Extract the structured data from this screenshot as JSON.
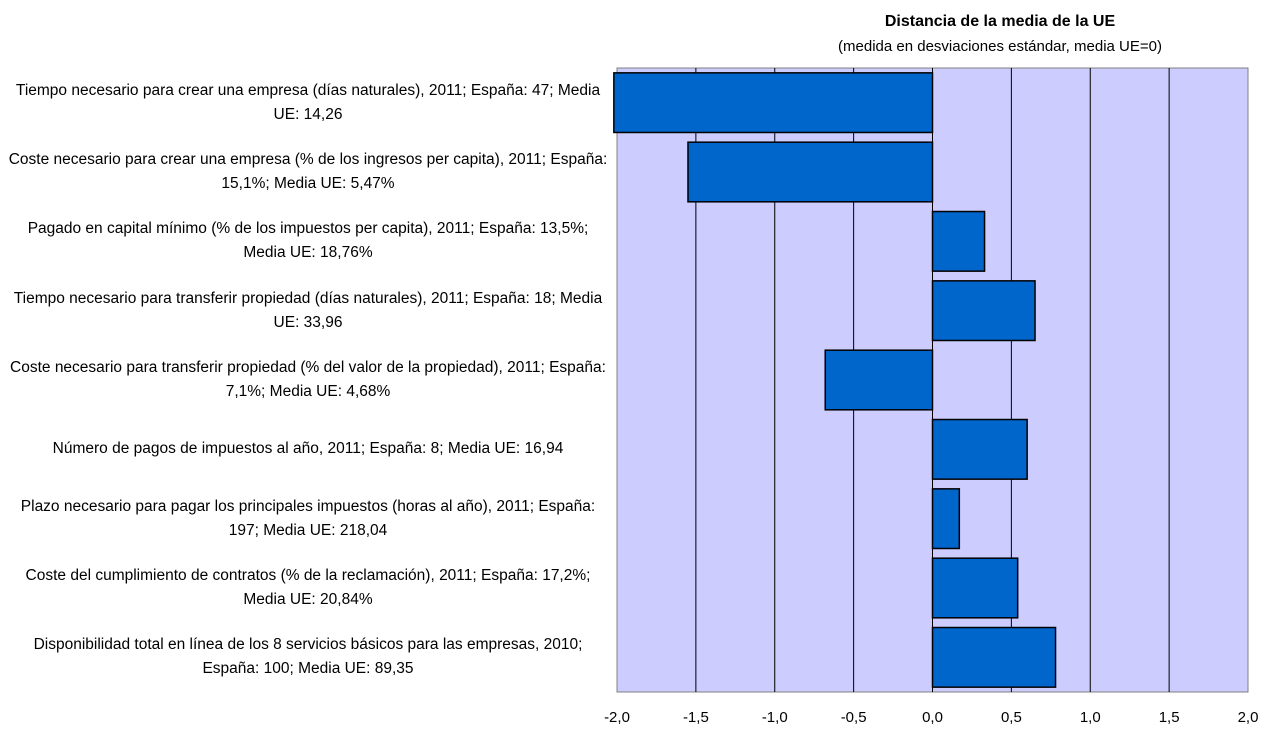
{
  "chart_data": {
    "type": "bar",
    "orientation": "horizontal",
    "title": "Distancia de la media de la UE",
    "subtitle": "(medida en desviaciones estándar, media UE=0)",
    "categories": [
      "Tiempo necesario para crear una empresa (días naturales), 2011; España: 47; Media UE: 14,26",
      "Coste necesario para crear una empresa (% de los ingresos per capita), 2011; España: 15,1%; Media UE: 5,47%",
      "Pagado en capital mínimo (% de los impuestos per capita), 2011; España: 13,5%; Media UE: 18,76%",
      "Tiempo necesario para transferir propiedad (días naturales), 2011; España: 18; Media UE: 33,96",
      "Coste necesario para transferir propiedad (% del valor de la propiedad), 2011; España: 7,1%; Media UE: 4,68%",
      "Número de pagos de impuestos al año, 2011; España: 8; Media UE: 16,94",
      "Plazo necesario para pagar los principales impuestos (horas al año), 2011; España: 197; Media UE: 218,04",
      "Coste del cumplimiento de contratos (% de la reclamación), 2011; España: 17,2%; Media UE: 20,84%",
      "Disponibilidad total en línea de los 8 servicios básicos para las empresas, 2010; España: 100; Media UE: 89,35"
    ],
    "values": [
      -2.02,
      -1.55,
      0.33,
      0.65,
      -0.68,
      0.6,
      0.17,
      0.54,
      0.78
    ],
    "color": "#0066cc",
    "xlim": [
      -2,
      2
    ],
    "xticks": [
      {
        "value": -2,
        "label": "-2,0"
      },
      {
        "value": -1.5,
        "label": "-1,5"
      },
      {
        "value": -1,
        "label": "-1,0"
      },
      {
        "value": -0.5,
        "label": "-0,5"
      },
      {
        "value": 0,
        "label": "0,0"
      },
      {
        "value": 0.5,
        "label": "0,5"
      },
      {
        "value": 1,
        "label": "1,0"
      },
      {
        "value": 1.5,
        "label": "1,5"
      },
      {
        "value": 2,
        "label": "2,0"
      }
    ],
    "grid": true
  }
}
